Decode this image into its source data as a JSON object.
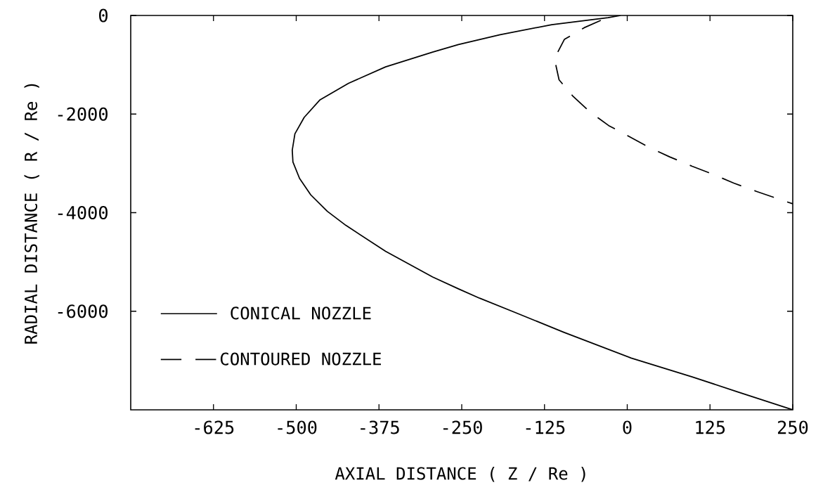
{
  "chart_data": {
    "type": "line",
    "xlabel": "AXIAL DISTANCE ( Z / Re )",
    "ylabel": "RADIAL DISTANCE ( R / Re )",
    "xlim": [
      -750,
      250
    ],
    "ylim": [
      -8000,
      0
    ],
    "xticks": [
      -625,
      -500,
      -375,
      -250,
      -125,
      0,
      125,
      250
    ],
    "yticks": [
      -6000,
      -4000,
      -2000,
      0
    ],
    "grid": false,
    "legend": "bottom left",
    "marker": "none",
    "series": [
      {
        "name": "CONICAL NOZZLE",
        "color": "#000000",
        "line_style": "solid",
        "x": [
          -10,
          -29,
          -114,
          -192,
          -255,
          -294,
          -365,
          -421,
          -464,
          -488,
          -502,
          -506,
          -505,
          -495,
          -478,
          -453,
          -425,
          -365,
          -294,
          -255,
          -223,
          -170,
          -96,
          6,
          98,
          168,
          250
        ],
        "values": [
          0,
          -43,
          -186,
          -390,
          -590,
          -743,
          -1043,
          -1376,
          -1710,
          -2067,
          -2400,
          -2733,
          -2972,
          -3305,
          -3640,
          -3973,
          -4258,
          -4783,
          -5306,
          -5545,
          -5735,
          -6021,
          -6426,
          -6950,
          -7331,
          -7641,
          -8000
        ]
      },
      {
        "name": "CONTOURED NOZZLE",
        "color": "#000000",
        "line_style": "dashed",
        "x": [
          -40,
          -65,
          -95,
          -110,
          -103,
          -82,
          -56,
          -28,
          2,
          33,
          64,
          98,
          130,
          161,
          195,
          229,
          250
        ],
        "values": [
          -100,
          -248,
          -486,
          -876,
          -1305,
          -1639,
          -1962,
          -2234,
          -2448,
          -2677,
          -2868,
          -3058,
          -3225,
          -3401,
          -3568,
          -3725,
          -3820
        ]
      }
    ]
  }
}
